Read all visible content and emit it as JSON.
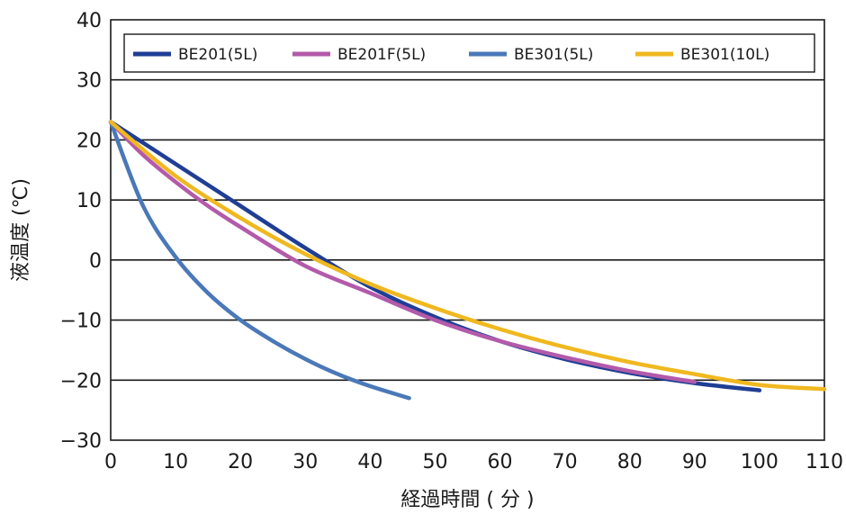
{
  "chart_data": {
    "type": "line",
    "xlabel": "経過時間 ( 分 )",
    "ylabel": "液温度 (℃)",
    "xlim": [
      0,
      110
    ],
    "ylim": [
      -30,
      40
    ],
    "xticks": [
      0,
      10,
      20,
      30,
      40,
      50,
      60,
      70,
      80,
      90,
      100,
      110
    ],
    "yticks": [
      -30,
      -20,
      -10,
      0,
      10,
      20,
      30,
      40
    ],
    "ytick_labels": [
      "−30",
      "−20",
      "−10",
      "0",
      "10",
      "20",
      "30",
      "40"
    ],
    "grid": "horizontal",
    "legend_position": "top",
    "series": [
      {
        "name": "BE201(5L)",
        "color": "#1f3e94",
        "x": [
          0,
          10,
          20,
          30,
          40,
          50,
          60,
          70,
          80,
          90,
          100
        ],
        "y": [
          23,
          16,
          9,
          2,
          -4.5,
          -9.5,
          -13.5,
          -16.5,
          -18.8,
          -20.5,
          -21.7
        ]
      },
      {
        "name": "BE201F(5L)",
        "color": "#b35aaa",
        "x": [
          0,
          5,
          10,
          15,
          20,
          30,
          40,
          50,
          60,
          70,
          80,
          90
        ],
        "y": [
          23,
          17.5,
          13,
          9,
          5.5,
          -1,
          -5.5,
          -10,
          -13.5,
          -16.2,
          -18.5,
          -20.3
        ]
      },
      {
        "name": "BE301(5L)",
        "color": "#4a78b8",
        "x": [
          0,
          5,
          10,
          15,
          20,
          25,
          30,
          35,
          40,
          46
        ],
        "y": [
          23,
          9,
          0.5,
          -5.5,
          -10,
          -13.5,
          -16.5,
          -19,
          -21,
          -23
        ]
      },
      {
        "name": "BE301(10L)",
        "color": "#f0b820",
        "x": [
          0,
          10,
          20,
          30,
          40,
          50,
          60,
          70,
          80,
          90,
          100,
          110
        ],
        "y": [
          23,
          14,
          7,
          1,
          -4,
          -8,
          -11.5,
          -14.5,
          -17,
          -19,
          -20.8,
          -21.5
        ]
      }
    ]
  }
}
